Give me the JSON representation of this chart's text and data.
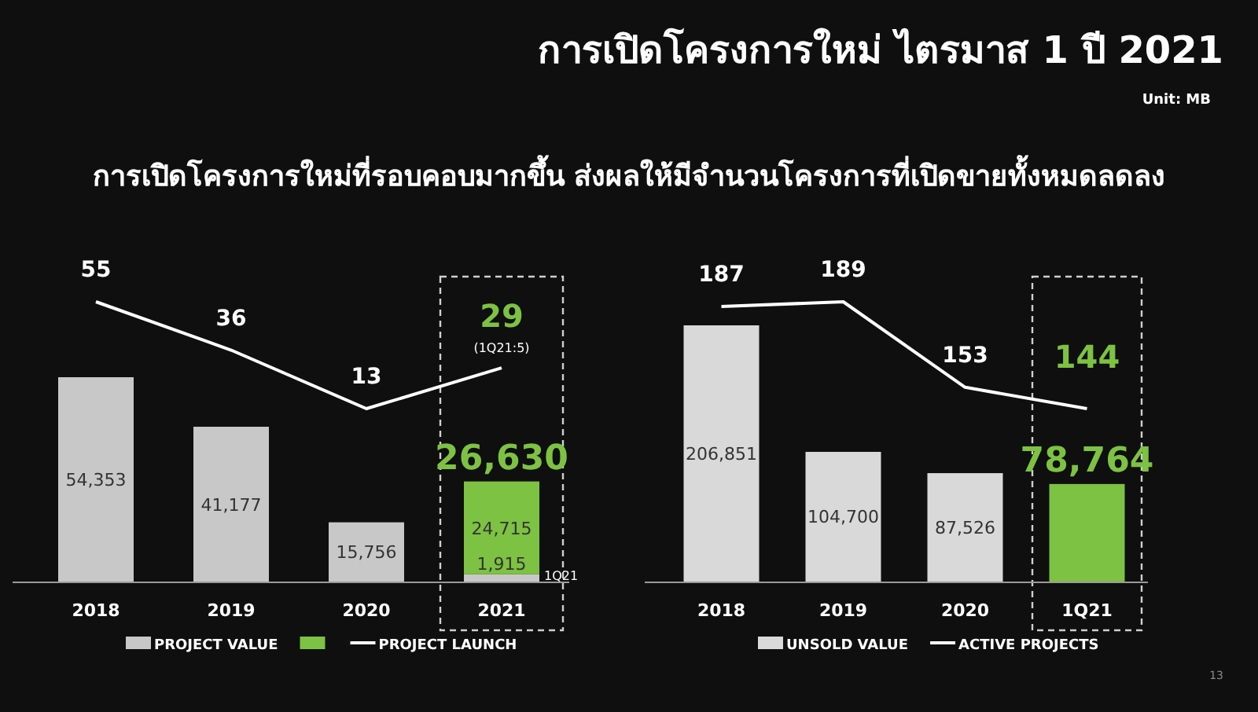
{
  "chart_data": [
    {
      "type": "bar",
      "subtitle": "การเปิดโครงการใหม่ที่รอบคอบมากขึ้น ส่งผลให้มีจำนวนโครงการที่เปิดขายทั้งหมดลดลง",
      "categories": [
        "2018",
        "2019",
        "2020",
        "2021"
      ],
      "stacked": true,
      "legend": "bottom",
      "series": [
        {
          "name": "PROJECT VALUE",
          "color": "#c8c8c8",
          "values": [
            54353,
            41177,
            15756,
            1915
          ],
          "value_labels": [
            "54,353",
            "41,177",
            "15,756",
            "1,915"
          ]
        },
        {
          "color": "#7dc242",
          "values": [
            null,
            null,
            null,
            24715
          ],
          "value_labels": [
            null,
            null,
            null,
            "24,715"
          ]
        },
        {
          "name": "PROJECT LAUNCH",
          "type": "line",
          "axis": "y2",
          "color": "#ffffff",
          "values": [
            55,
            36,
            13,
            29
          ],
          "value_labels": [
            "55",
            "36",
            "13",
            "29"
          ]
        }
      ],
      "totals": [
        null,
        null,
        null,
        "26,630"
      ],
      "annotations": [
        "Unit: MB",
        "(1Q21:5)",
        "1Q21"
      ]
    },
    {
      "type": "bar",
      "title": "การเปิดโครงการใหม่ ไตรมาส 1 ปี 2021",
      "categories": [
        "2018",
        "2019",
        "2020",
        "1Q21"
      ],
      "legend": "bottom",
      "series": [
        {
          "name": "UNSOLD VALUE",
          "color": "#d9d9d9",
          "colors": [
            "#d9d9d9",
            "#d9d9d9",
            "#d9d9d9",
            "#7dc242"
          ],
          "values": [
            206851,
            104700,
            87526,
            78764
          ],
          "value_labels": [
            "206,851",
            "104,700",
            "87,526",
            "78,764"
          ]
        },
        {
          "name": "ACTIVE PROJECTS",
          "type": "line",
          "axis": "y2",
          "color": "#ffffff",
          "values": [
            187,
            189,
            153,
            144
          ],
          "value_labels": [
            "187",
            "189",
            "153",
            "144"
          ]
        }
      ],
      "annotations": [
        "13"
      ]
    }
  ]
}
